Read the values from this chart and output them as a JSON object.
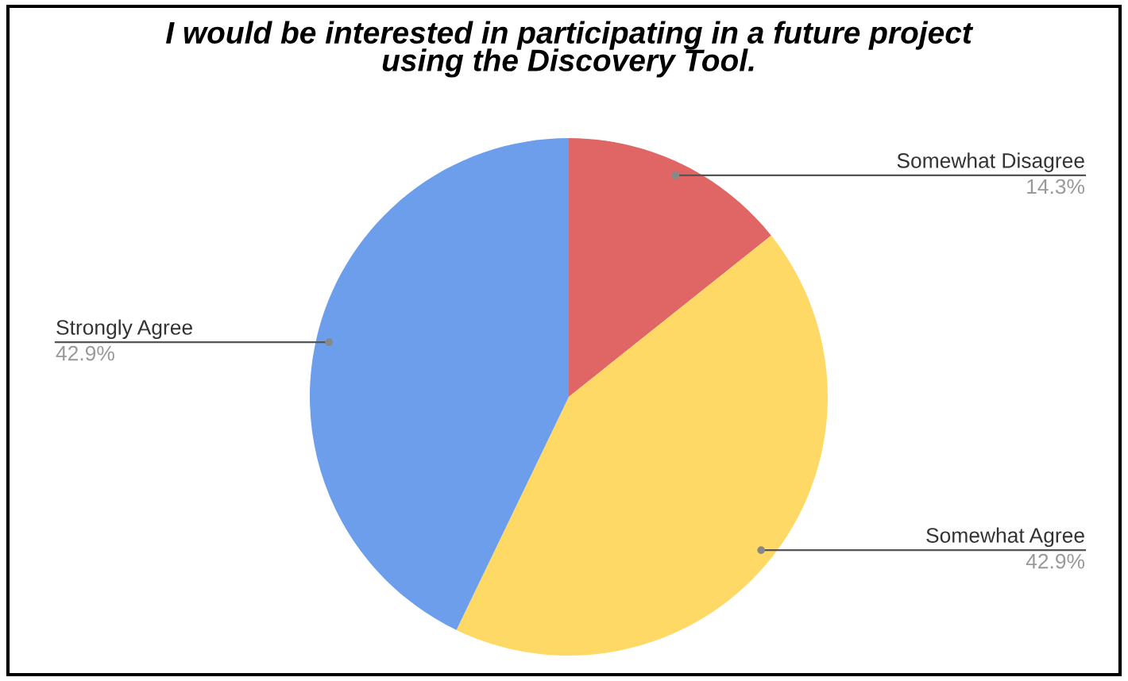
{
  "chart_data": {
    "type": "pie",
    "title": "I would be interested in participating in a future project\nusing the Discovery Tool.",
    "categories": [
      "Somewhat Disagree",
      "Somewhat Agree",
      "Strongly Agree"
    ],
    "values": [
      14.3,
      42.9,
      42.9
    ],
    "value_labels": [
      "14.3%",
      "42.9%",
      "42.9%"
    ],
    "colors": [
      "#e06666",
      "#ffd966",
      "#6d9eeb"
    ],
    "legend": false
  }
}
